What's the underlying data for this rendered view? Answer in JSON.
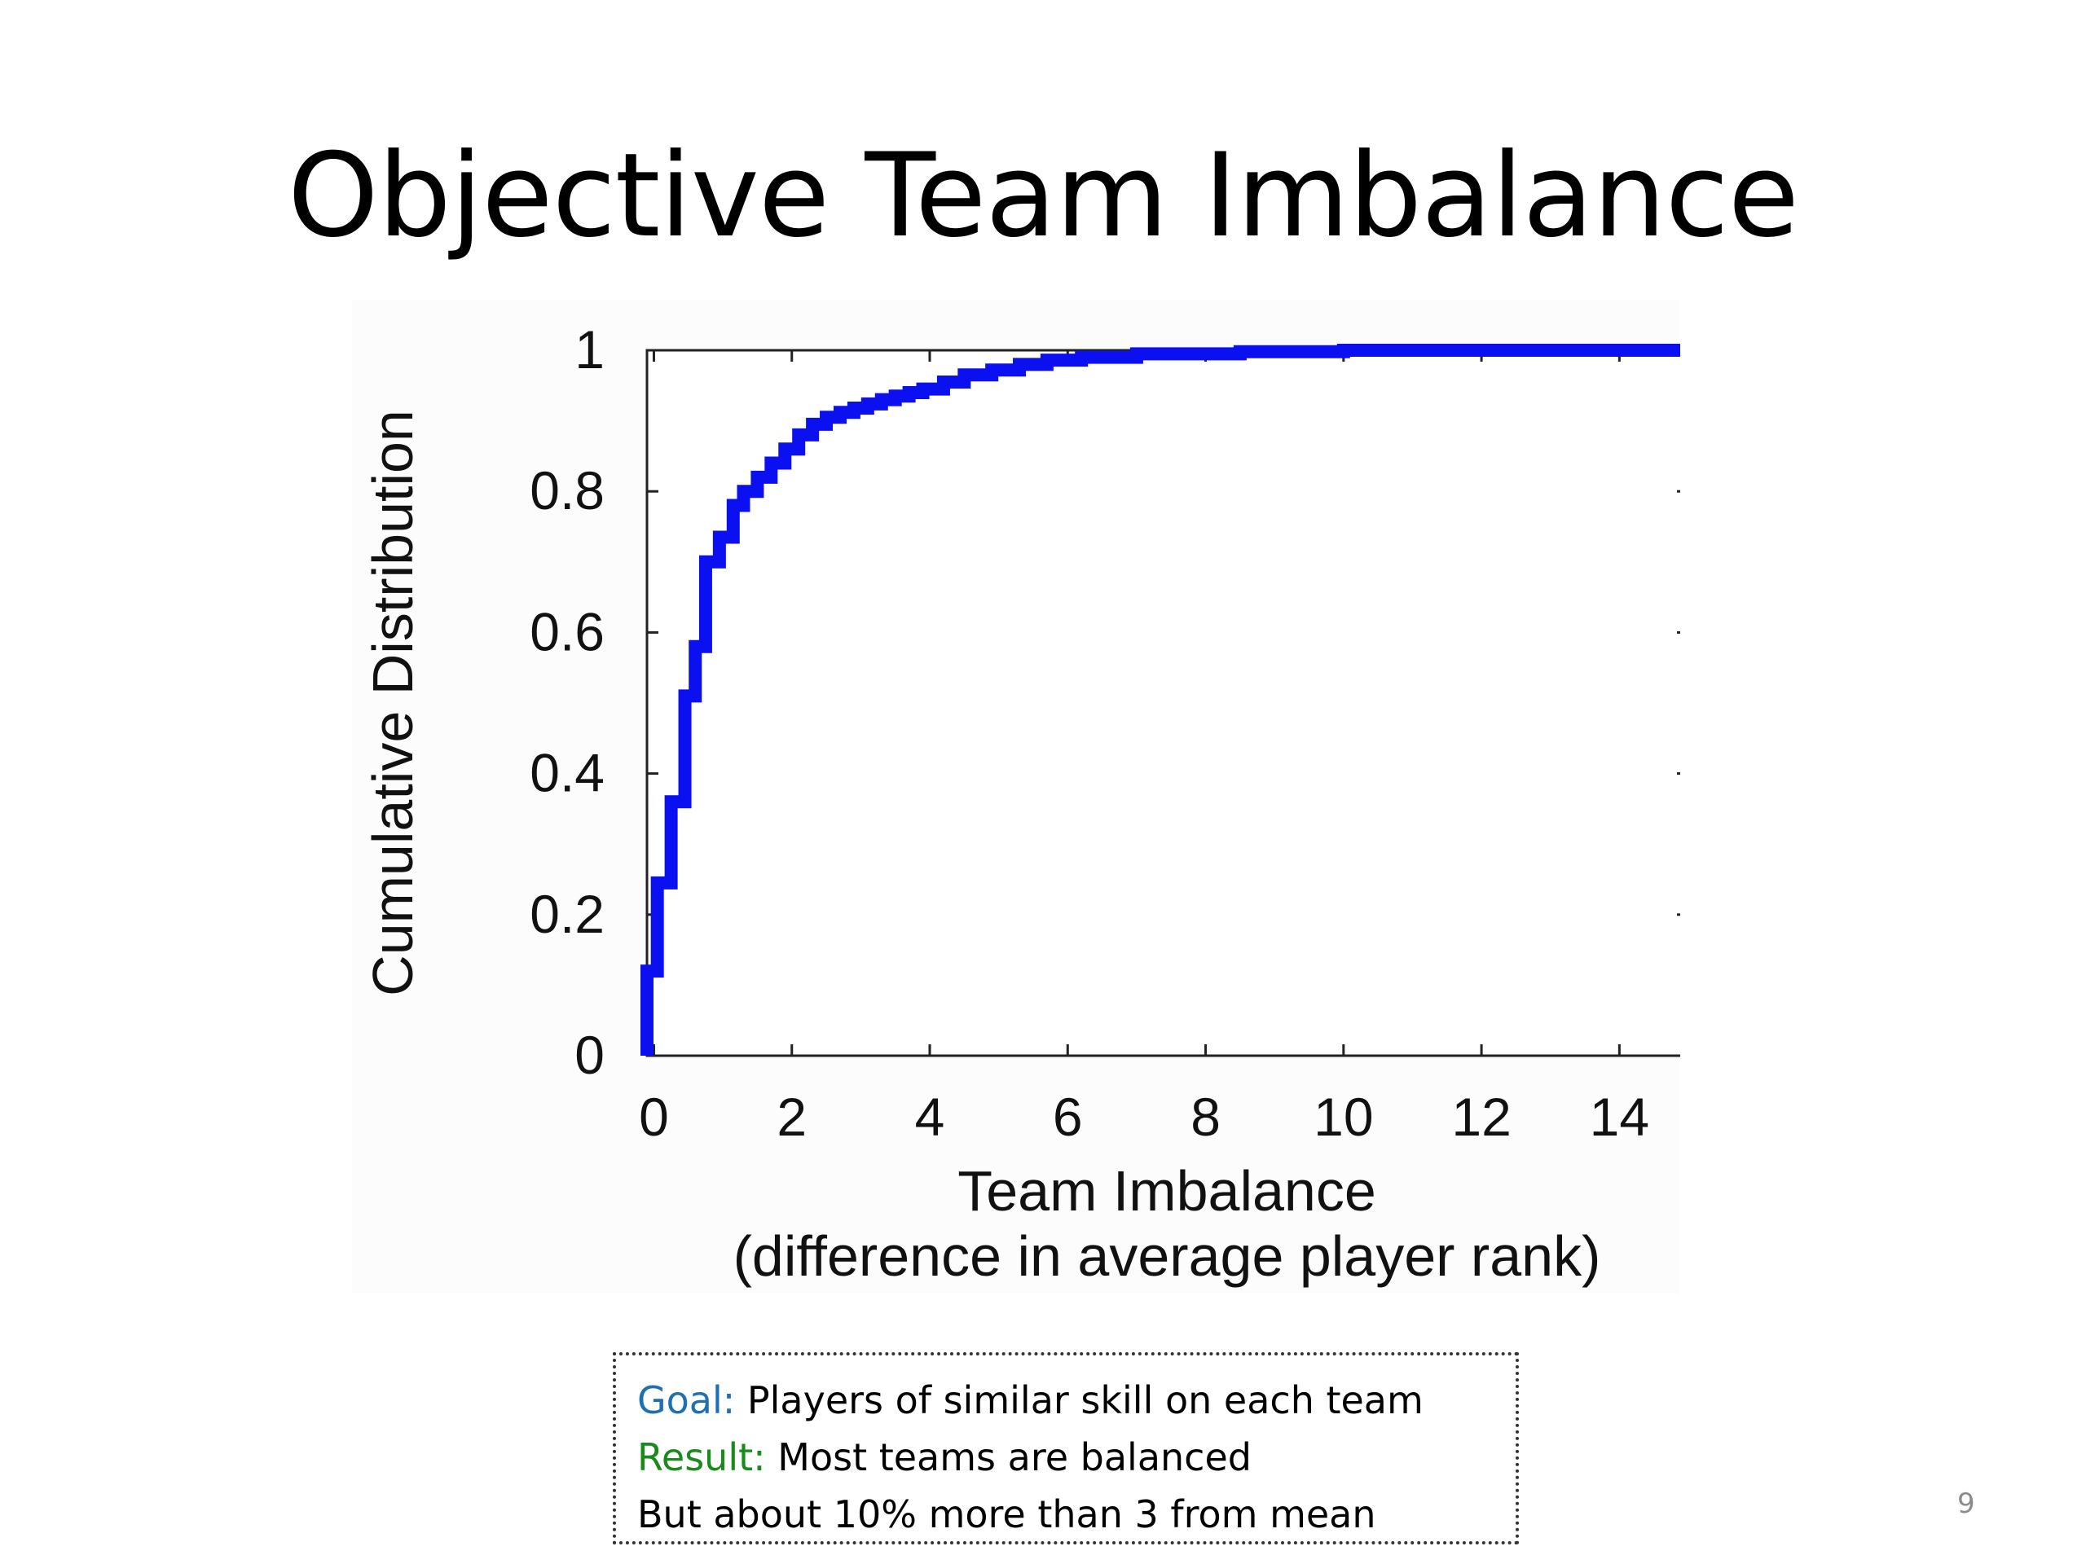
{
  "slide": {
    "title": "Objective Team Imbalance",
    "page_number": "9"
  },
  "note": {
    "goal_label": "Goal:",
    "goal_text": "Players of similar skill on each team",
    "result_label": "Result:",
    "result_text": "Most teams are balanced",
    "extra_text": "But about 10% more than 3 from mean"
  },
  "colors": {
    "series": "#0a10f0",
    "goal": "#1f6fb5",
    "result": "#1a8a1a"
  },
  "chart_data": {
    "type": "line",
    "step": true,
    "ylabel": "Cumulative Distribution",
    "xlabel": [
      "Team Imbalance",
      "(difference in average player rank)"
    ],
    "xlim": [
      -0.1,
      15
    ],
    "ylim": [
      0,
      1
    ],
    "xticks": [
      0,
      2,
      4,
      6,
      8,
      10,
      12,
      14
    ],
    "yticks": [
      0,
      0.2,
      0.4,
      0.6,
      0.8,
      1
    ],
    "ytick_labels": [
      "0",
      "0.2",
      "0.4",
      "0.6",
      "0.8",
      "1"
    ],
    "grid": false,
    "series": [
      {
        "x": [
          -0.1,
          0.05,
          0.25,
          0.45,
          0.6,
          0.75,
          0.95,
          1.15,
          1.3,
          1.5,
          1.7,
          1.9,
          2.1,
          2.3,
          2.5,
          2.7,
          2.9,
          3.1,
          3.3,
          3.5,
          3.7,
          3.9,
          4.2,
          4.5,
          4.9,
          5.3,
          5.7,
          6.2,
          7.0,
          8.5,
          10.0,
          15.0
        ],
        "y": [
          0.12,
          0.245,
          0.36,
          0.51,
          0.58,
          0.7,
          0.735,
          0.78,
          0.8,
          0.82,
          0.84,
          0.86,
          0.88,
          0.895,
          0.905,
          0.912,
          0.918,
          0.924,
          0.93,
          0.935,
          0.94,
          0.945,
          0.955,
          0.965,
          0.972,
          0.98,
          0.986,
          0.99,
          0.995,
          0.998,
          1.0,
          1.0
        ]
      }
    ]
  }
}
